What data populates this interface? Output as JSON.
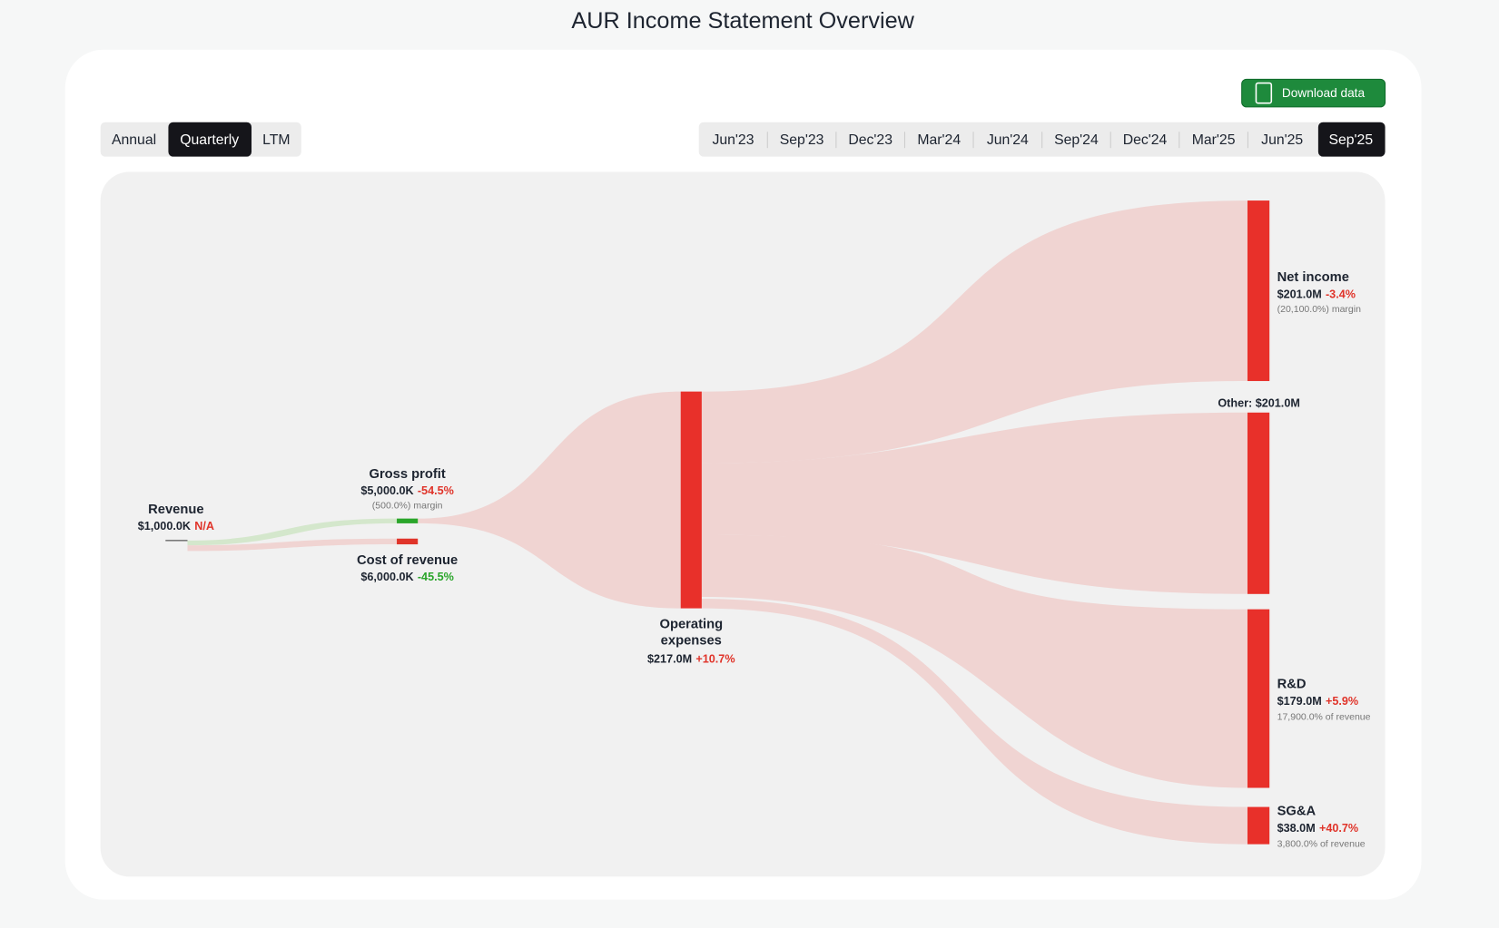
{
  "header": {
    "title": "AUR Income Statement Overview",
    "download": "Download data"
  },
  "period_tabs": [
    "Annual",
    "Quarterly",
    "LTM"
  ],
  "date_tabs": [
    "Jun'23",
    "Sep'23",
    "Dec'23",
    "Mar'24",
    "Jun'24",
    "Sep'24",
    "Dec'24",
    "Mar'25",
    "Jun'25",
    "Sep'25"
  ],
  "nodes": [
    {
      "label": "Revenue",
      "value": "$1,000.0K",
      "change": "N/A"
    },
    {
      "label": "Gross profit",
      "value": "$5,000.0K",
      "change": "-54.5%",
      "note": "(500.0%) margin"
    },
    {
      "label": "Cost of revenue",
      "value": "$6,000.0K",
      "change": "-45.5%"
    },
    {
      "label": "Operating expenses",
      "value": "$217.0M",
      "change": "+10.7%"
    },
    {
      "label": "Net income",
      "value": "$201.0M",
      "change": "-3.4%",
      "note": "(20,100.0%) margin"
    },
    {
      "label": "R&D",
      "value": "$179.0M",
      "change": "+5.9%",
      "note": "17,900.0% of revenue"
    },
    {
      "label": "SG&A",
      "value": "$38.0M",
      "change": "+40.7%",
      "note": "3,800.0% of revenue"
    }
  ],
  "other": "Other: $201.0M"
}
